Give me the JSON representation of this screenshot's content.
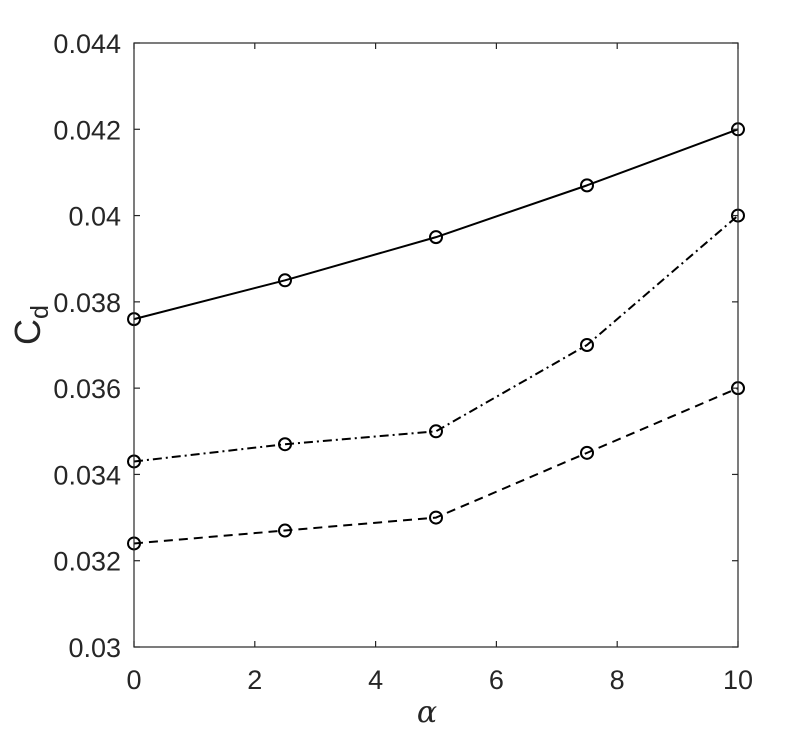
{
  "chart_data": {
    "type": "line",
    "title": "",
    "xlabel": "α",
    "ylabel_main": "C",
    "ylabel_sub": "d",
    "x": [
      0,
      2.5,
      5,
      7.5,
      10
    ],
    "xlim": [
      0,
      10
    ],
    "ylim": [
      0.03,
      0.044
    ],
    "x_ticks": [
      0,
      2,
      4,
      6,
      8,
      10
    ],
    "x_tick_labels": [
      "0",
      "2",
      "4",
      "6",
      "8",
      "10"
    ],
    "y_ticks": [
      0.03,
      0.032,
      0.034,
      0.036,
      0.038,
      0.04,
      0.042,
      0.044
    ],
    "y_tick_labels": [
      "0.03",
      "0.032",
      "0.034",
      "0.036",
      "0.038",
      "0.04",
      "0.042",
      "0.044"
    ],
    "grid": false,
    "legend": "none",
    "color": "#000000",
    "series": [
      {
        "style": "solid",
        "marker": "circle",
        "values": [
          0.0376,
          0.0385,
          0.0395,
          0.0407,
          0.042
        ]
      },
      {
        "style": "dash-dot",
        "marker": "circle",
        "values": [
          0.0343,
          0.0347,
          0.035,
          0.037,
          0.04
        ]
      },
      {
        "style": "dashed",
        "marker": "circle",
        "values": [
          0.0324,
          0.0327,
          0.033,
          0.0345,
          0.036
        ]
      }
    ]
  }
}
